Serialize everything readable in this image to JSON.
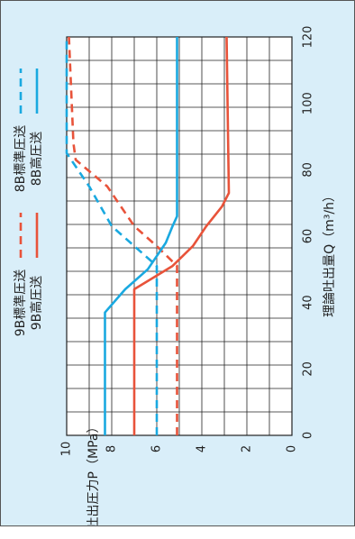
{
  "chart_data": {
    "type": "line",
    "xlabel": "理論吐出量Q（m³/h）",
    "ylabel": "理論吐出圧力P（MPa）",
    "xlim": [
      0,
      120
    ],
    "ylim": [
      0,
      10
    ],
    "x_ticks": [
      "0",
      "20",
      "40",
      "60",
      "80",
      "100",
      "120"
    ],
    "y_ticks": [
      "10",
      "8",
      "6",
      "4",
      "2",
      "0"
    ],
    "grid": true,
    "legend_position": "right",
    "series": [
      {
        "name": "9B標準圧送",
        "color": "#e8533a",
        "dash": true,
        "points": [
          [
            0,
            5.1
          ],
          [
            51,
            5.1
          ],
          [
            57,
            6.0
          ],
          [
            63,
            7.0
          ],
          [
            73,
            8.0
          ],
          [
            75,
            8.2
          ],
          [
            83,
            9.6
          ],
          [
            88,
            9.7
          ],
          [
            120,
            9.9
          ]
        ]
      },
      {
        "name": "9B高圧送",
        "color": "#e8533a",
        "dash": false,
        "points": [
          [
            0,
            7.0
          ],
          [
            44,
            7.0
          ],
          [
            51,
            5.3
          ],
          [
            57,
            4.4
          ],
          [
            63,
            3.8
          ],
          [
            69,
            3.1
          ],
          [
            73,
            2.8
          ],
          [
            120,
            2.9
          ]
        ]
      },
      {
        "name": "8B標準圧送",
        "color": "#1aa9e0",
        "dash": true,
        "points": [
          [
            0,
            6.0
          ],
          [
            51,
            6.0
          ],
          [
            63,
            8.0
          ],
          [
            75,
            9.0
          ],
          [
            85,
            10.0
          ],
          [
            100,
            10.0
          ],
          [
            120,
            10.0
          ]
        ]
      },
      {
        "name": "8B高圧送",
        "color": "#1aa9e0",
        "dash": false,
        "points": [
          [
            0,
            8.3
          ],
          [
            37,
            8.3
          ],
          [
            44,
            7.4
          ],
          [
            50,
            6.4
          ],
          [
            58,
            5.6
          ],
          [
            63,
            5.3
          ],
          [
            66,
            5.1
          ],
          [
            120,
            5.1
          ]
        ]
      }
    ]
  }
}
